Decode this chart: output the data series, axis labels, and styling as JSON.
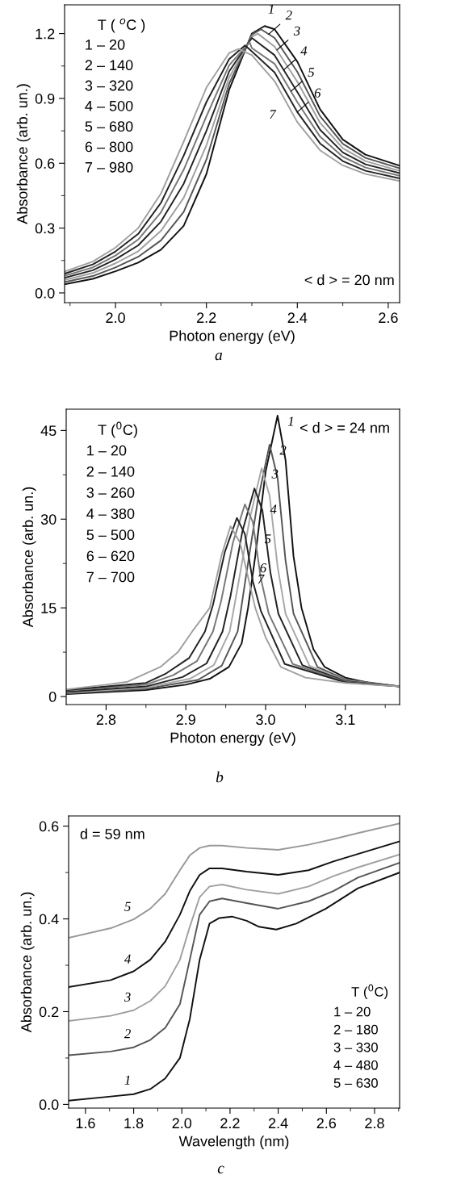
{
  "chart_data": [
    {
      "type": "line",
      "xlabel": "Photon energy (eV)",
      "ylabel": "Absorbance (arb. un.)",
      "xlim": [
        1.888,
        2.625
      ],
      "ylim": [
        -0.045,
        1.333
      ],
      "xticks": [
        {
          "value": 1.9,
          "label": null
        },
        {
          "value": 2,
          "label": "2.0"
        },
        {
          "value": 2.1,
          "label": null
        },
        2.2,
        {
          "value": 2.3,
          "label": null
        },
        2.4,
        {
          "value": 2.5,
          "label": null
        },
        2.6
      ],
      "yticks": [
        {
          "value": 0,
          "label": "0.0"
        },
        {
          "value": 0.15,
          "label": null
        },
        0.3,
        {
          "value": 0.45,
          "label": null
        },
        0.6,
        {
          "value": 0.75,
          "label": null
        },
        0.9,
        {
          "value": 1.05,
          "label": null
        },
        1.2
      ],
      "series": [
        {
          "color": "#111111",
          "x": [
            1.888,
            1.95,
            2.0,
            2.05,
            2.1,
            2.15,
            2.2,
            2.25,
            2.3,
            2.328,
            2.35,
            2.4,
            2.45,
            2.5,
            2.55,
            2.625
          ],
          "values": [
            0.04,
            0.065,
            0.1,
            0.14,
            0.2,
            0.31,
            0.55,
            0.94,
            1.2,
            1.235,
            1.22,
            1.07,
            0.85,
            0.71,
            0.64,
            0.589
          ]
        },
        {
          "color": "#555555",
          "x": [
            1.888,
            1.95,
            2.0,
            2.05,
            2.1,
            2.15,
            2.2,
            2.25,
            2.3,
            2.32,
            2.35,
            2.4,
            2.45,
            2.5,
            2.55,
            2.625
          ],
          "values": [
            0.05,
            0.078,
            0.118,
            0.167,
            0.243,
            0.375,
            0.617,
            0.968,
            1.195,
            1.22,
            1.18,
            1.023,
            0.818,
            0.69,
            0.625,
            0.577
          ]
        },
        {
          "color": "#a0a0a0",
          "x": [
            1.888,
            1.95,
            2.0,
            2.05,
            2.1,
            2.15,
            2.2,
            2.25,
            2.3,
            2.313,
            2.35,
            2.4,
            2.45,
            2.5,
            2.55,
            2.625
          ],
          "values": [
            0.06,
            0.092,
            0.137,
            0.193,
            0.287,
            0.44,
            0.683,
            0.997,
            1.185,
            1.2,
            1.14,
            0.977,
            0.787,
            0.67,
            0.61,
            0.565
          ]
        },
        {
          "color": "#222222",
          "x": [
            1.888,
            1.95,
            2.0,
            2.05,
            2.1,
            2.15,
            2.2,
            2.25,
            2.3,
            2.35,
            2.4,
            2.45,
            2.5,
            2.55,
            2.625
          ],
          "values": [
            0.07,
            0.105,
            0.155,
            0.22,
            0.33,
            0.505,
            0.75,
            1.025,
            1.18,
            1.1,
            0.93,
            0.755,
            0.65,
            0.595,
            0.554
          ]
        },
        {
          "color": "#777777",
          "x": [
            1.888,
            1.95,
            2.0,
            2.05,
            2.1,
            2.15,
            2.2,
            2.25,
            2.295,
            2.3,
            2.35,
            2.4,
            2.45,
            2.5,
            2.55,
            2.625
          ],
          "values": [
            0.079,
            0.118,
            0.173,
            0.247,
            0.373,
            0.57,
            0.817,
            1.053,
            1.16,
            1.133,
            1.06,
            0.883,
            0.723,
            0.63,
            0.58,
            0.542
          ]
        },
        {
          "color": "#222222",
          "x": [
            1.888,
            1.95,
            2.0,
            2.05,
            2.1,
            2.15,
            2.2,
            2.25,
            2.285,
            2.3,
            2.35,
            2.4,
            2.45,
            2.5,
            2.55,
            2.625
          ],
          "values": [
            0.089,
            0.132,
            0.192,
            0.273,
            0.417,
            0.635,
            0.883,
            1.082,
            1.145,
            1.117,
            1.02,
            0.837,
            0.692,
            0.61,
            0.565,
            0.53
          ]
        },
        {
          "color": "#a0a0a0",
          "x": [
            1.888,
            1.95,
            2.0,
            2.05,
            2.1,
            2.15,
            2.2,
            2.25,
            2.271,
            2.3,
            2.35,
            2.4,
            2.45,
            2.5,
            2.55,
            2.625
          ],
          "values": [
            0.099,
            0.145,
            0.21,
            0.3,
            0.46,
            0.7,
            0.95,
            1.11,
            1.129,
            1.1,
            0.98,
            0.79,
            0.66,
            0.59,
            0.55,
            0.518
          ]
        }
      ],
      "annotations": [
        "T ( $^{o}$C )",
        "1 – 20",
        "2 – 140",
        "3 – 320",
        "4 – 500",
        "5 – 680",
        "6 – 800",
        "7 – 980",
        "< d > = 20 nm",
        "a",
        {
          "text": "1",
          "x": 2.328,
          "y": 1.235
        },
        {
          "text": "2",
          "x": 2.337,
          "y": 1.197
        },
        {
          "text": "3",
          "x": 2.355,
          "y": 1.124
        },
        {
          "text": "4",
          "x": 2.37,
          "y": 1.032
        },
        {
          "text": "5",
          "x": 2.386,
          "y": 0.933
        },
        {
          "text": "6",
          "x": 2.4,
          "y": 0.837
        },
        {
          "text": "7",
          "x": 2.37,
          "y": 0.904
        }
      ]
    },
    {
      "type": "line",
      "xlabel": "Photon energy (eV)",
      "ylabel": "Absorbance (arb. un.)",
      "xlim": [
        2.75,
        3.168
      ],
      "ylim": [
        -1.36,
        48.6
      ],
      "xticks": [
        2.8,
        {
          "value": 2.85,
          "label": null
        },
        2.9,
        {
          "value": 2.95,
          "label": null
        },
        {
          "value": 3,
          "label": "3.0"
        },
        {
          "value": 3.05,
          "label": null
        },
        3.1,
        {
          "value": 3.15,
          "label": null
        }
      ],
      "yticks": [
        0,
        {
          "value": 7.5,
          "label": null
        },
        15,
        {
          "value": 22.5,
          "label": null
        },
        30,
        {
          "value": 37.5,
          "label": null
        },
        45
      ],
      "series": [
        {
          "color": "#111111",
          "x": [
            2.75,
            2.85,
            2.9,
            2.93,
            2.954,
            2.97,
            2.978,
            2.987,
            3.0,
            3.015,
            3.025,
            3.035,
            3.045,
            3.06,
            3.074,
            3.1,
            3.13,
            3.168
          ],
          "values": [
            0.4,
            1.1,
            2.0,
            3.0,
            5.0,
            9,
            15,
            23.7,
            38,
            47.5,
            40,
            23.7,
            15,
            8,
            5.0,
            3.2,
            2.3,
            1.7
          ]
        },
        {
          "color": "#555555",
          "x": [
            2.75,
            2.85,
            2.915,
            2.945,
            2.965,
            2.975,
            2.99,
            3.005,
            3.015,
            3.025,
            3.035,
            3.065,
            3.1,
            3.168
          ],
          "values": [
            0.5,
            1.3,
            2.8,
            5.2,
            11,
            20,
            33,
            42.6,
            37,
            23,
            14,
            5,
            2.9,
            1.7
          ]
        },
        {
          "color": "#a8a8a8",
          "x": [
            2.75,
            2.85,
            2.905,
            2.935,
            2.955,
            2.965,
            2.98,
            2.995,
            3.005,
            3.015,
            3.025,
            3.055,
            3.1,
            3.168
          ],
          "values": [
            0.7,
            1.5,
            3.0,
            5.3,
            11,
            18.5,
            30,
            38.6,
            34,
            22,
            14,
            5.2,
            2.7,
            1.7
          ]
        },
        {
          "color": "#222222",
          "x": [
            2.75,
            2.85,
            2.896,
            2.926,
            2.946,
            2.956,
            2.971,
            2.986,
            2.996,
            3.006,
            3.016,
            3.046,
            3.1,
            3.168
          ],
          "values": [
            0.8,
            1.7,
            3.3,
            5.6,
            11,
            17,
            28,
            35.2,
            31.5,
            21,
            14,
            5.3,
            2.6,
            1.7
          ]
        },
        {
          "color": "#777777",
          "x": [
            2.75,
            2.85,
            2.884,
            2.914,
            2.934,
            2.944,
            2.959,
            2.974,
            2.984,
            2.994,
            3.004,
            3.034,
            3.1,
            3.168
          ],
          "values": [
            1.0,
            2.0,
            3.6,
            6,
            11,
            16,
            26,
            32.5,
            29.5,
            20,
            14,
            5.5,
            2.5,
            1.7
          ]
        },
        {
          "color": "#222222",
          "x": [
            2.75,
            2.85,
            2.874,
            2.904,
            2.924,
            2.934,
            2.949,
            2.964,
            2.974,
            2.984,
            2.994,
            3.024,
            3.1,
            3.168
          ],
          "values": [
            1.1,
            2.3,
            3.8,
            6.5,
            11,
            15.5,
            24.5,
            30.2,
            27.5,
            19.5,
            14.5,
            5.5,
            2.4,
            1.7
          ]
        },
        {
          "color": "#a0a0a0",
          "x": [
            2.75,
            2.8,
            2.827,
            2.868,
            2.89,
            2.908,
            2.93,
            2.945,
            2.956,
            2.968,
            2.987,
            3.0,
            3.019,
            3.05,
            3.1,
            3.168
          ],
          "values": [
            1.2,
            2.0,
            2.5,
            5.0,
            7.5,
            11,
            15,
            24,
            28.8,
            26,
            15,
            10,
            5.0,
            3.2,
            2.3,
            1.7
          ]
        }
      ],
      "annotations": [
        "T ($^{0}$C)",
        "1 – 20",
        "2 – 140",
        "3 – 260",
        "4 – 380",
        "5 – 500",
        "6 – 620",
        "7 – 700",
        "< d > = 24 nm",
        "b",
        {
          "text": "1",
          "x": 3.015,
          "y": 47.5
        },
        {
          "text": "2",
          "x": 3.005,
          "y": 42.6
        },
        {
          "text": "3",
          "x": 2.995,
          "y": 38.6
        },
        {
          "text": "4",
          "x": 2.993,
          "y": 32.6
        },
        {
          "text": "5",
          "x": 2.986,
          "y": 27.6
        },
        {
          "text": "6",
          "x": 2.98,
          "y": 22.7
        },
        {
          "text": "7",
          "x": 2.977,
          "y": 20.8
        }
      ]
    },
    {
      "type": "line",
      "xlabel": "Wavelength (nm)",
      "ylabel": "Absorbance (arb. un.)",
      "xlim": [
        1.53,
        2.904
      ],
      "ylim": [
        -0.008,
        0.622
      ],
      "x": [
        1.53,
        1.705,
        1.8,
        1.869,
        1.931,
        1.992,
        2.033,
        2.074,
        2.115,
        2.167,
        2.269,
        2.4,
        2.526,
        2.629,
        2.731,
        2.904
      ],
      "xticks": [
        1.6,
        {
          "value": 1.7,
          "label": null
        },
        1.8,
        {
          "value": 1.9,
          "label": null
        },
        {
          "value": 2,
          "label": "2.0"
        },
        {
          "value": 2.1,
          "label": null
        },
        2.2,
        {
          "value": 2.3,
          "label": null
        },
        2.4,
        {
          "value": 2.5,
          "label": null
        },
        2.6,
        {
          "value": 2.7,
          "label": null
        },
        2.8,
        {
          "value": 2.9,
          "label": null
        }
      ],
      "yticks": [
        {
          "value": 0,
          "label": "0.0"
        },
        {
          "value": 0.1,
          "label": null
        },
        0.2,
        {
          "value": 0.3,
          "label": null
        },
        0.4,
        {
          "value": 0.5,
          "label": null
        },
        0.6
      ],
      "series": [
        {
          "color": "#111111",
          "x": [
            1.53,
            1.705,
            1.8,
            1.869,
            1.931,
            1.992,
            2.033,
            2.074,
            2.115,
            2.156,
            2.208,
            2.269,
            2.32,
            2.392,
            2.475,
            2.598,
            2.731,
            2.904
          ],
          "values": [
            0.008,
            0.017,
            0.022,
            0.033,
            0.056,
            0.1,
            0.184,
            0.312,
            0.39,
            0.402,
            0.405,
            0.396,
            0.383,
            0.377,
            0.39,
            0.422,
            0.466,
            0.5
          ]
        },
        {
          "color": "#555555",
          "values": [
            0.106,
            0.114,
            0.123,
            0.139,
            0.165,
            0.216,
            0.312,
            0.409,
            0.438,
            0.444,
            0.434,
            0.422,
            0.438,
            0.46,
            0.489,
            0.521
          ]
        },
        {
          "color": "#a0a0a0",
          "values": [
            0.18,
            0.191,
            0.203,
            0.223,
            0.255,
            0.312,
            0.383,
            0.447,
            0.47,
            0.474,
            0.463,
            0.454,
            0.47,
            0.492,
            0.511,
            0.539
          ]
        },
        {
          "color": "#111111",
          "values": [
            0.253,
            0.268,
            0.287,
            0.312,
            0.351,
            0.409,
            0.46,
            0.495,
            0.509,
            0.509,
            0.502,
            0.495,
            0.505,
            0.524,
            0.54,
            0.567
          ]
        },
        {
          "color": "#999999",
          "values": [
            0.359,
            0.38,
            0.399,
            0.422,
            0.454,
            0.505,
            0.537,
            0.553,
            0.558,
            0.558,
            0.553,
            0.549,
            0.56,
            0.572,
            0.585,
            0.606
          ]
        }
      ],
      "annotations": [
        "T ($^{0}$C)",
        "1 – 20",
        "2 – 180",
        "3 – 330",
        "4 – 480",
        "5 – 630",
        "d = 59 nm",
        "c",
        {
          "text": "5",
          "x": 1.775,
          "y": 0.395
        },
        {
          "text": "4",
          "x": 1.775,
          "y": 0.282
        },
        {
          "text": "3",
          "x": 1.775,
          "y": 0.2
        },
        {
          "text": "2",
          "x": 1.775,
          "y": 0.121
        },
        {
          "text": "1",
          "x": 1.775,
          "y": 0.021
        }
      ]
    }
  ]
}
